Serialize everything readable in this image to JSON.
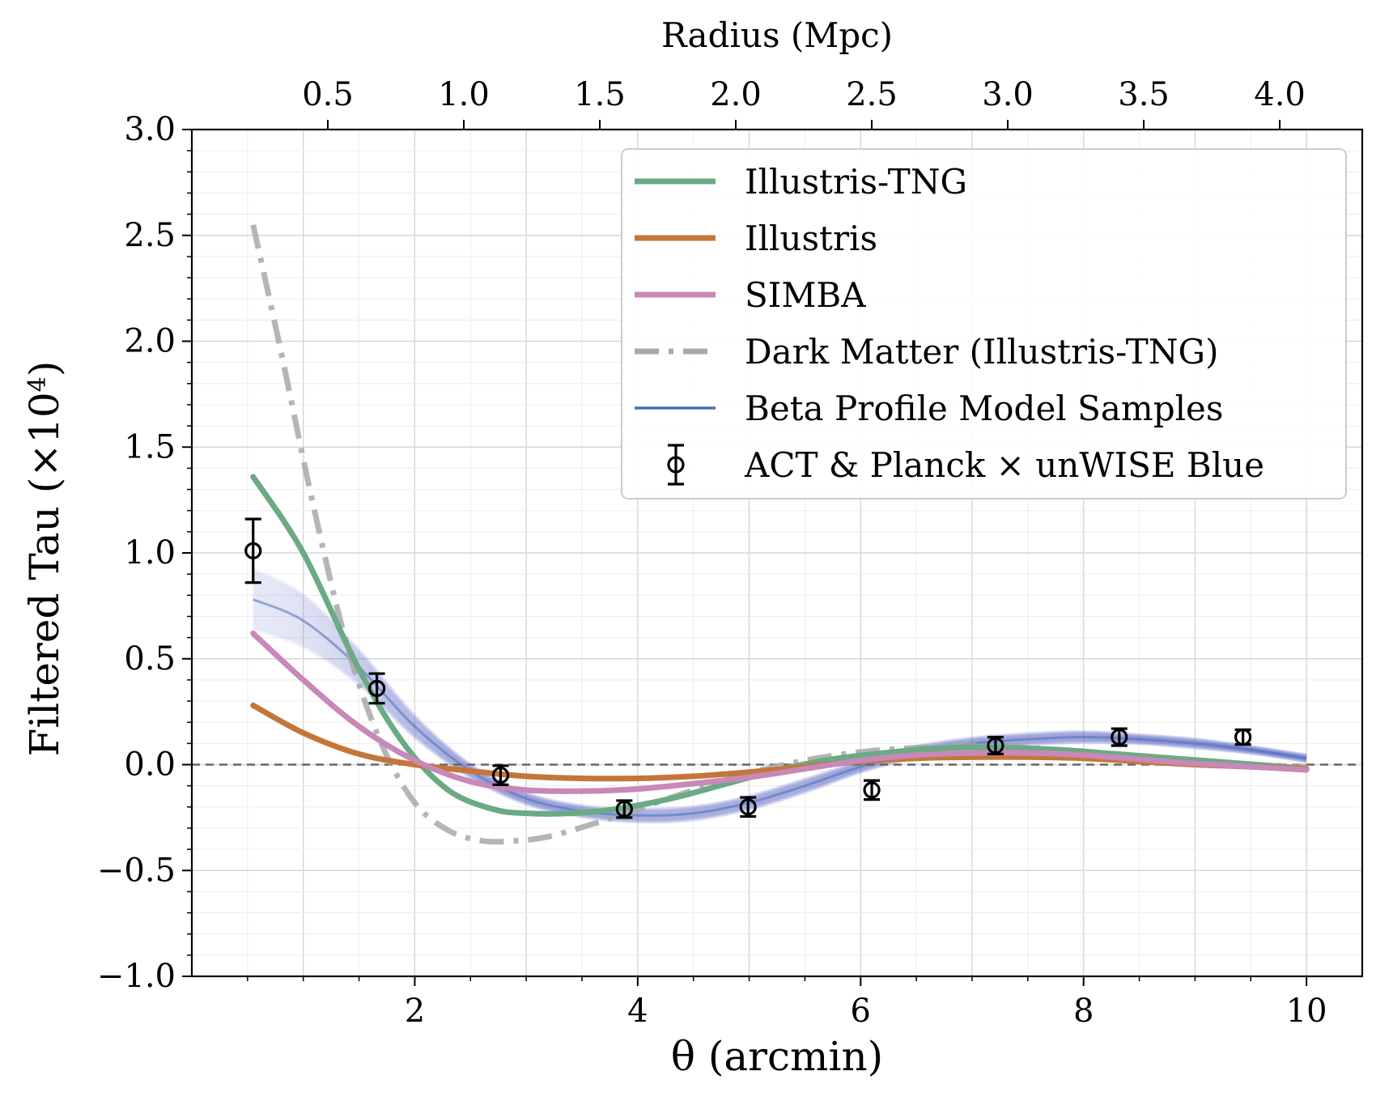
{
  "chart_data": {
    "type": "line",
    "xlabel": "θ (arcmin)",
    "ylabel": "Filtered Tau (×10",
    "ylabel_sup": "4",
    "ylabel_close": ")",
    "top_xlabel": "Radius (Mpc)",
    "xlim": [
      0,
      10.5
    ],
    "ylim": [
      -1.0,
      3.0
    ],
    "x_ticks": [
      2,
      4,
      6,
      8,
      10
    ],
    "x_tick_labels": [
      "2",
      "4",
      "6",
      "8",
      "10"
    ],
    "y_ticks": [
      -1.0,
      -0.5,
      0.0,
      0.5,
      1.0,
      1.5,
      2.0,
      2.5,
      3.0
    ],
    "y_tick_labels": [
      "−1.0",
      "−0.5",
      "0.0",
      "0.5",
      "1.0",
      "1.5",
      "2.0",
      "2.5",
      "3.0"
    ],
    "top_ticks": [
      0.5,
      1.0,
      1.5,
      2.0,
      2.5,
      3.0,
      3.5,
      4.0
    ],
    "top_tick_labels": [
      "0.5",
      "1.0",
      "1.5",
      "2.0",
      "2.5",
      "3.0",
      "3.5",
      "4.0"
    ],
    "arcmin_per_mpc": 2.44,
    "grid": true,
    "legend_position": "upper right",
    "zero_line": true,
    "series": [
      {
        "name": "Illustris-TNG",
        "style": "solid",
        "color": "#6aaa84",
        "x": [
          0.55,
          1.0,
          1.5,
          1.9,
          2.3,
          2.7,
          3.0,
          3.4,
          3.8,
          4.3,
          4.8,
          5.3,
          5.8,
          6.3,
          6.8,
          7.3,
          7.8,
          8.3,
          8.8,
          9.3,
          9.8,
          10.0
        ],
        "y": [
          1.36,
          1.0,
          0.45,
          0.1,
          -0.12,
          -0.21,
          -0.23,
          -0.23,
          -0.21,
          -0.16,
          -0.09,
          -0.02,
          0.03,
          0.06,
          0.08,
          0.08,
          0.07,
          0.05,
          0.03,
          0.01,
          -0.01,
          -0.02
        ]
      },
      {
        "name": "Illustris",
        "style": "solid",
        "color": "#c4763a",
        "x": [
          0.55,
          1.0,
          1.5,
          2.0,
          2.5,
          3.0,
          3.5,
          4.0,
          4.5,
          5.0,
          5.5,
          6.0,
          6.5,
          7.0,
          7.5,
          8.0,
          8.5,
          9.0,
          9.5,
          10.0
        ],
        "y": [
          0.28,
          0.15,
          0.05,
          0.0,
          -0.03,
          -0.055,
          -0.065,
          -0.065,
          -0.055,
          -0.035,
          -0.01,
          0.015,
          0.03,
          0.035,
          0.035,
          0.03,
          0.015,
          0.0,
          -0.01,
          -0.02
        ]
      },
      {
        "name": "SIMBA",
        "style": "solid",
        "color": "#c888b8",
        "x": [
          0.55,
          1.0,
          1.5,
          2.0,
          2.5,
          3.0,
          3.5,
          4.0,
          4.5,
          5.0,
          5.5,
          6.0,
          6.5,
          7.0,
          7.5,
          8.0,
          8.5,
          9.0,
          9.5,
          10.0
        ],
        "y": [
          0.62,
          0.4,
          0.18,
          0.02,
          -0.08,
          -0.12,
          -0.125,
          -0.115,
          -0.09,
          -0.06,
          -0.02,
          0.02,
          0.045,
          0.055,
          0.055,
          0.045,
          0.025,
          0.005,
          -0.01,
          -0.025
        ]
      },
      {
        "name": "Dark Matter (Illustris-TNG)",
        "style": "dashdot",
        "color": "#a8a8a8",
        "x": [
          0.55,
          0.8,
          1.1,
          1.4,
          1.7,
          2.0,
          2.3,
          2.6,
          2.9,
          3.2,
          3.6,
          4.0,
          4.5,
          5.0,
          5.5,
          6.0,
          6.5,
          7.0,
          7.5,
          8.0,
          8.5,
          9.0,
          9.5,
          10.0
        ],
        "y": [
          2.55,
          1.95,
          1.2,
          0.55,
          0.1,
          -0.18,
          -0.31,
          -0.36,
          -0.36,
          -0.34,
          -0.28,
          -0.21,
          -0.12,
          -0.04,
          0.02,
          0.06,
          0.08,
          0.09,
          0.08,
          0.06,
          0.04,
          0.02,
          0.0,
          -0.01
        ]
      },
      {
        "name": "Beta Profile Model Samples",
        "style": "band",
        "color": "#5a5fc8",
        "x": [
          0.55,
          1.0,
          1.5,
          2.0,
          2.5,
          3.0,
          3.5,
          4.0,
          4.5,
          5.0,
          5.5,
          6.0,
          6.5,
          7.0,
          7.5,
          8.0,
          8.5,
          9.0,
          9.5,
          10.0
        ],
        "y": [
          0.78,
          0.68,
          0.46,
          0.18,
          -0.03,
          -0.16,
          -0.22,
          -0.24,
          -0.23,
          -0.18,
          -0.1,
          -0.01,
          0.06,
          0.1,
          0.12,
          0.13,
          0.12,
          0.1,
          0.07,
          0.03
        ],
        "spread": [
          0.14,
          0.12,
          0.08,
          0.05,
          0.03,
          0.025,
          0.025,
          0.03,
          0.03,
          0.03,
          0.03,
          0.025,
          0.025,
          0.025,
          0.025,
          0.025,
          0.02,
          0.02,
          0.015,
          0.015
        ]
      }
    ],
    "data_points": {
      "name": "ACT & Planck × unWISE Blue",
      "x": [
        0.55,
        1.66,
        2.77,
        3.88,
        4.99,
        6.1,
        7.21,
        8.32,
        9.43
      ],
      "y": [
        1.01,
        0.36,
        -0.05,
        -0.21,
        -0.2,
        -0.12,
        0.09,
        0.13,
        0.13
      ],
      "err": [
        0.15,
        0.07,
        0.045,
        0.04,
        0.045,
        0.045,
        0.04,
        0.04,
        0.035
      ]
    }
  }
}
